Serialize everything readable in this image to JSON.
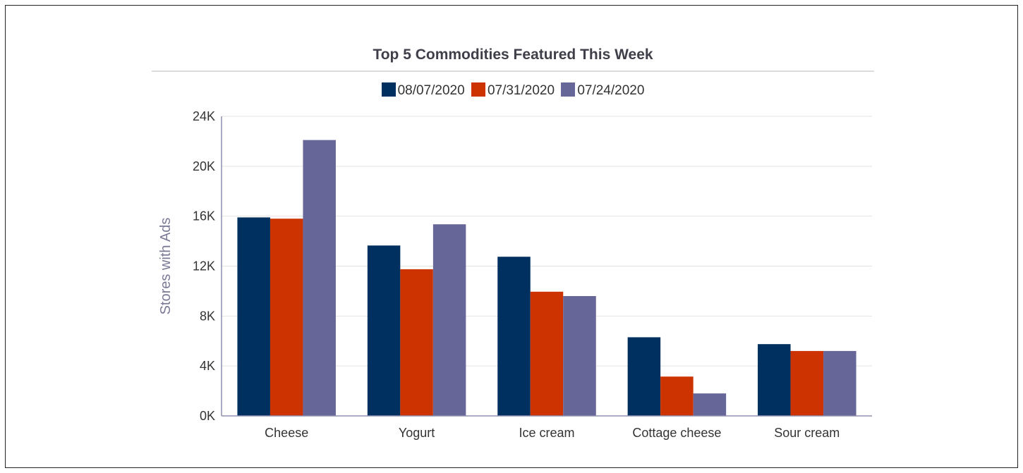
{
  "chart_data": {
    "type": "bar",
    "title": "Top 5 Commodities Featured This Week",
    "xlabel": "",
    "ylabel": "Stores with Ads",
    "categories": [
      "Cheese",
      "Yogurt",
      "Ice cream",
      "Cottage cheese",
      "Sour cream"
    ],
    "series": [
      {
        "name": "08/07/2020",
        "color": "#00305f",
        "values": [
          15900,
          13650,
          12750,
          6300,
          5750
        ]
      },
      {
        "name": "07/31/2020",
        "color": "#cc3300",
        "values": [
          15800,
          11750,
          9950,
          3150,
          5200
        ]
      },
      {
        "name": "07/24/2020",
        "color": "#666699",
        "values": [
          22100,
          15350,
          9600,
          1800,
          5200
        ]
      }
    ],
    "ylim": [
      0,
      24000
    ],
    "yticks": [
      0,
      4000,
      8000,
      12000,
      16000,
      20000,
      24000
    ],
    "ytick_labels": [
      "0K",
      "4K",
      "8K",
      "12K",
      "16K",
      "20K",
      "24K"
    ],
    "grid": true,
    "legend_position": "top-center"
  }
}
